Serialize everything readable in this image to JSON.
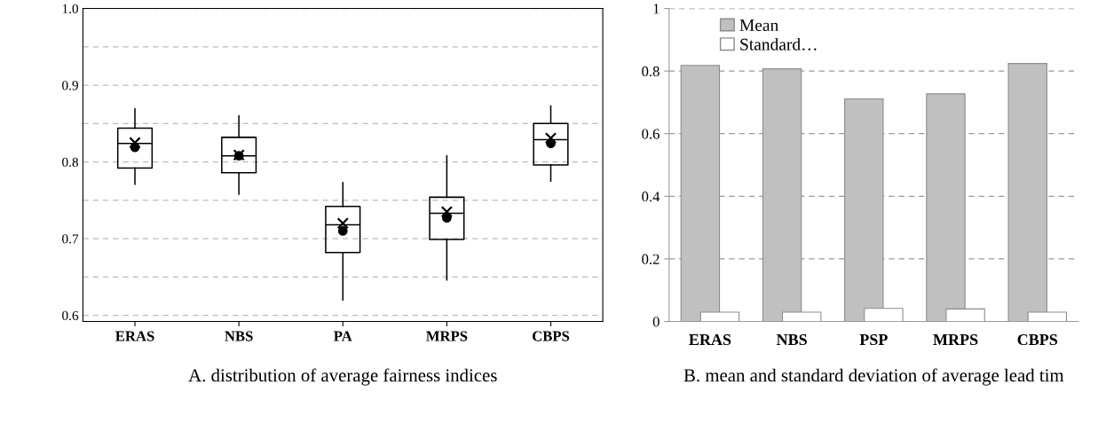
{
  "chart_data": [
    {
      "type": "box",
      "categories": [
        "ERAS",
        "NBS",
        "PA",
        "MRPS",
        "CBPS"
      ],
      "boxes": [
        {
          "low": 0.771,
          "q1": 0.792,
          "median": 0.824,
          "q3": 0.844,
          "high": 0.869,
          "mean": 0.825
        },
        {
          "low": 0.758,
          "q1": 0.786,
          "median": 0.808,
          "q3": 0.832,
          "high": 0.86,
          "mean": 0.809
        },
        {
          "low": 0.62,
          "q1": 0.682,
          "median": 0.718,
          "q3": 0.742,
          "high": 0.773,
          "mean": 0.72
        },
        {
          "low": 0.646,
          "q1": 0.699,
          "median": 0.733,
          "q3": 0.754,
          "high": 0.808,
          "mean": 0.735
        },
        {
          "low": 0.775,
          "q1": 0.796,
          "median": 0.829,
          "q3": 0.85,
          "high": 0.873,
          "mean": 0.831
        }
      ],
      "series": [
        {
          "type": "scatter",
          "color": "#000000",
          "marker": "circle",
          "x": [
            "ERAS",
            "NBS",
            "PA",
            "MRPS",
            "CBPS"
          ],
          "values": [
            0.819,
            0.808,
            0.71,
            0.727,
            0.824
          ]
        }
      ],
      "ylim": [
        0.592,
        1.0
      ],
      "yticks": [
        {
          "value": 0.6,
          "label": "0.6"
        },
        {
          "value": 0.65,
          "label": null
        },
        {
          "value": 0.7,
          "label": "0.7"
        },
        {
          "value": 0.75,
          "label": null
        },
        {
          "value": 0.8,
          "label": "0.8"
        },
        {
          "value": 0.85,
          "label": null
        },
        {
          "value": 0.9,
          "label": "0.9"
        },
        {
          "value": 0.95,
          "label": null
        },
        {
          "value": 1.0,
          "label": "1.0"
        }
      ],
      "grid": "y",
      "line_style": "dashed",
      "annotations": [
        "A. distribution of average fairness indices"
      ]
    },
    {
      "type": "bar",
      "categories": [
        "ERAS",
        "NBS",
        "PSP",
        "MRPS",
        "CBPS"
      ],
      "series": [
        {
          "name": "Mean",
          "color": "#c0c0c0",
          "values": [
            0.818,
            0.807,
            0.711,
            0.727,
            0.824
          ]
        },
        {
          "name": "Standard…",
          "color": "#ffffff",
          "values": [
            0.03,
            0.03,
            0.042,
            0.04,
            0.03
          ]
        }
      ],
      "ylim": [
        0,
        1
      ],
      "yticks": [
        0,
        {
          "value": 0.2,
          "label": "0.2"
        },
        {
          "value": 0.4,
          "label": "0.4"
        },
        {
          "value": 0.6,
          "label": "0.6"
        },
        {
          "value": 0.8,
          "label": "0.8"
        },
        1
      ],
      "grid": "y",
      "line_style": "dashed",
      "legend": "top left",
      "annotations": [
        "B. mean and standard deviation of average lead tim"
      ]
    }
  ]
}
